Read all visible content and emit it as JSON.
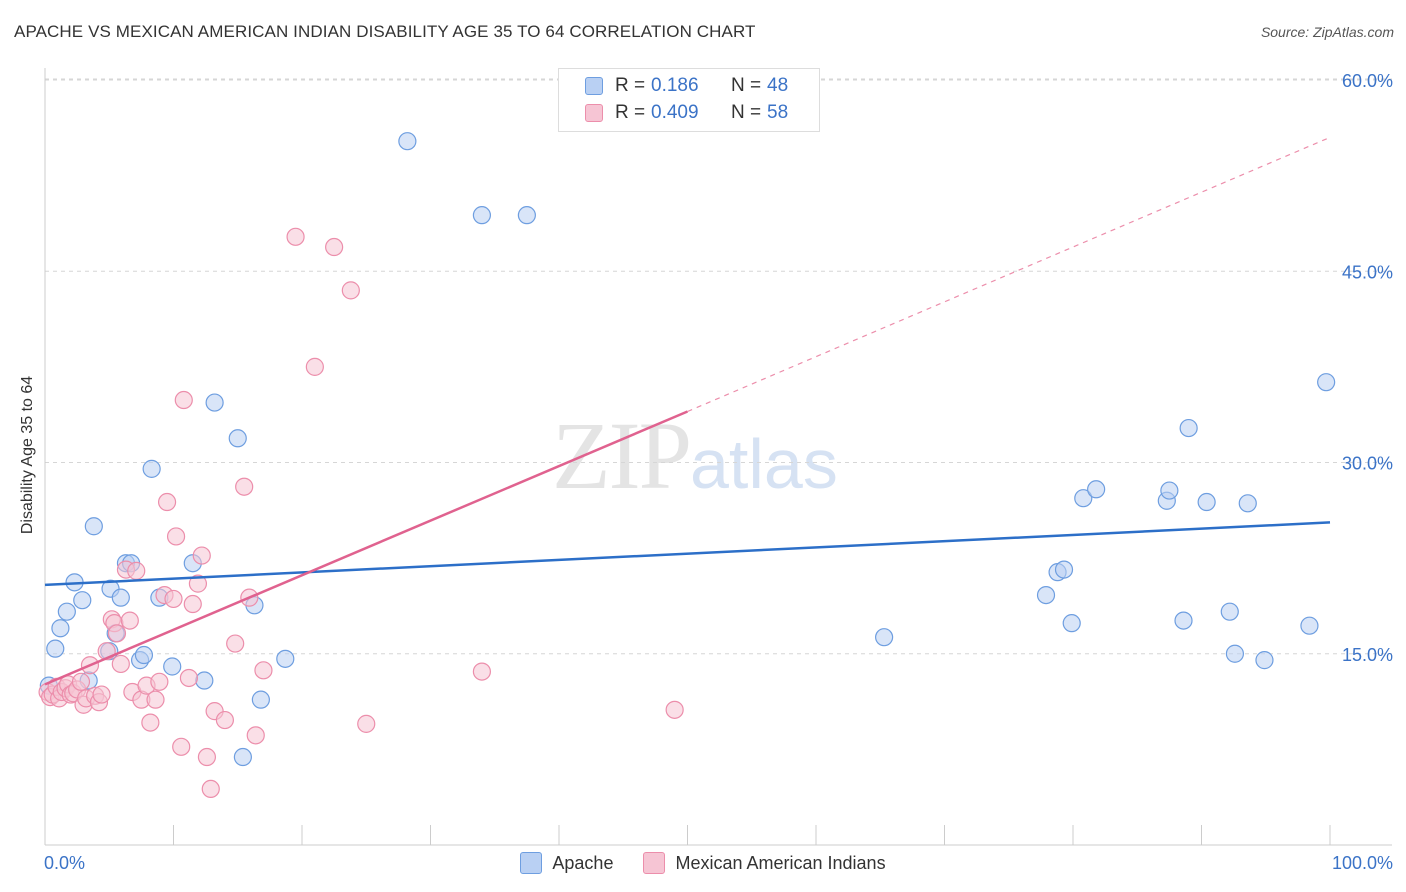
{
  "title": "APACHE VS MEXICAN AMERICAN INDIAN DISABILITY AGE 35 TO 64 CORRELATION CHART",
  "source": "Source: ZipAtlas.com",
  "watermark": {
    "zip": "ZIP",
    "atlas": "atlas"
  },
  "colors": {
    "apache": "#6e9ee0",
    "apache_fill": "#b9d0f3",
    "apache_line": "#2c6fc8",
    "mexican": "#ec8eab",
    "mexican_fill": "#f6c5d4",
    "mexican_line": "#e0628f",
    "grid": "#d6d6d6",
    "tick_label": "#3b73c7"
  },
  "legend": {
    "r_label": "R =",
    "n_label": "N =",
    "apache": {
      "r": "0.186",
      "n": "48"
    },
    "mexican": {
      "r": "0.409",
      "n": "58"
    }
  },
  "chart_data": {
    "type": "scatter",
    "title": "APACHE VS MEXICAN AMERICAN INDIAN DISABILITY AGE 35 TO 64 CORRELATION CHART",
    "xlabel": "",
    "ylabel": "Disability Age 35 to 64",
    "xlim": [
      0,
      100
    ],
    "ylim": [
      0,
      60
    ],
    "x_tick_labels": [
      "0.0%",
      "100.0%"
    ],
    "y_ticks": [
      15,
      30,
      45,
      60
    ],
    "y_tick_labels": [
      "15.0%",
      "30.0%",
      "45.0%",
      "60.0%"
    ],
    "legend_position": "top-center",
    "series": [
      {
        "name": "Apache",
        "r": 0.186,
        "n": 48,
        "trend": {
          "x": [
            0,
            100
          ],
          "y": [
            20.4,
            25.3
          ],
          "dashed_from": null
        },
        "points": [
          [
            0.3,
            12.5
          ],
          [
            0.8,
            15.4
          ],
          [
            1.2,
            17.0
          ],
          [
            1.7,
            18.3
          ],
          [
            2.3,
            20.6
          ],
          [
            2.9,
            19.2
          ],
          [
            3.4,
            12.9
          ],
          [
            3.8,
            25.0
          ],
          [
            5.0,
            15.2
          ],
          [
            5.1,
            20.1
          ],
          [
            5.5,
            16.6
          ],
          [
            5.9,
            19.4
          ],
          [
            6.3,
            22.1
          ],
          [
            6.7,
            22.1
          ],
          [
            7.4,
            14.5
          ],
          [
            7.7,
            14.9
          ],
          [
            8.3,
            29.5
          ],
          [
            8.9,
            19.4
          ],
          [
            9.9,
            14.0
          ],
          [
            11.5,
            22.1
          ],
          [
            12.4,
            12.9
          ],
          [
            13.2,
            34.7
          ],
          [
            15.0,
            31.9
          ],
          [
            15.4,
            6.9
          ],
          [
            16.3,
            18.8
          ],
          [
            16.8,
            11.4
          ],
          [
            18.7,
            14.6
          ],
          [
            28.2,
            55.2
          ],
          [
            34.0,
            49.4
          ],
          [
            37.5,
            49.4
          ],
          [
            65.3,
            16.3
          ],
          [
            77.9,
            19.6
          ],
          [
            78.8,
            21.4
          ],
          [
            79.3,
            21.6
          ],
          [
            79.9,
            17.4
          ],
          [
            80.8,
            27.2
          ],
          [
            81.8,
            27.9
          ],
          [
            87.3,
            27.0
          ],
          [
            87.5,
            27.8
          ],
          [
            88.6,
            17.6
          ],
          [
            89.0,
            32.7
          ],
          [
            90.4,
            26.9
          ],
          [
            92.2,
            18.3
          ],
          [
            92.6,
            15.0
          ],
          [
            93.6,
            26.8
          ],
          [
            94.9,
            14.5
          ],
          [
            98.4,
            17.2
          ],
          [
            99.7,
            36.3
          ]
        ]
      },
      {
        "name": "Mexican American Indians",
        "r": 0.409,
        "n": 58,
        "trend": {
          "x": [
            0,
            50
          ],
          "y": [
            12.6,
            34.0
          ],
          "dashed_to": [
            100,
            55.5
          ]
        },
        "points": [
          [
            0.2,
            12.0
          ],
          [
            0.4,
            11.6
          ],
          [
            0.6,
            11.8
          ],
          [
            0.9,
            12.4
          ],
          [
            1.1,
            11.5
          ],
          [
            1.3,
            12.0
          ],
          [
            1.6,
            12.3
          ],
          [
            1.8,
            12.6
          ],
          [
            2.0,
            11.8
          ],
          [
            2.2,
            11.9
          ],
          [
            2.5,
            12.2
          ],
          [
            2.8,
            12.8
          ],
          [
            3.0,
            11.0
          ],
          [
            3.2,
            11.5
          ],
          [
            3.5,
            14.1
          ],
          [
            3.9,
            11.7
          ],
          [
            4.2,
            11.2
          ],
          [
            4.4,
            11.8
          ],
          [
            4.8,
            15.2
          ],
          [
            5.2,
            17.7
          ],
          [
            5.4,
            17.4
          ],
          [
            5.6,
            16.6
          ],
          [
            5.9,
            14.2
          ],
          [
            6.3,
            21.6
          ],
          [
            6.6,
            17.6
          ],
          [
            6.8,
            12.0
          ],
          [
            7.1,
            21.5
          ],
          [
            7.5,
            11.4
          ],
          [
            7.9,
            12.5
          ],
          [
            8.2,
            9.6
          ],
          [
            8.6,
            11.4
          ],
          [
            8.9,
            12.8
          ],
          [
            9.3,
            19.6
          ],
          [
            9.5,
            26.9
          ],
          [
            10.0,
            19.3
          ],
          [
            10.2,
            24.2
          ],
          [
            10.6,
            7.7
          ],
          [
            10.8,
            34.9
          ],
          [
            11.2,
            13.1
          ],
          [
            11.5,
            18.9
          ],
          [
            11.9,
            20.5
          ],
          [
            12.2,
            22.7
          ],
          [
            12.6,
            6.9
          ],
          [
            12.9,
            4.4
          ],
          [
            13.2,
            10.5
          ],
          [
            14.0,
            9.8
          ],
          [
            14.8,
            15.8
          ],
          [
            15.5,
            28.1
          ],
          [
            15.9,
            19.4
          ],
          [
            16.4,
            8.6
          ],
          [
            17.0,
            13.7
          ],
          [
            19.5,
            47.7
          ],
          [
            21.0,
            37.5
          ],
          [
            22.5,
            46.9
          ],
          [
            23.8,
            43.5
          ],
          [
            25.0,
            9.5
          ],
          [
            34.0,
            13.6
          ],
          [
            49.0,
            10.6
          ]
        ]
      }
    ]
  }
}
